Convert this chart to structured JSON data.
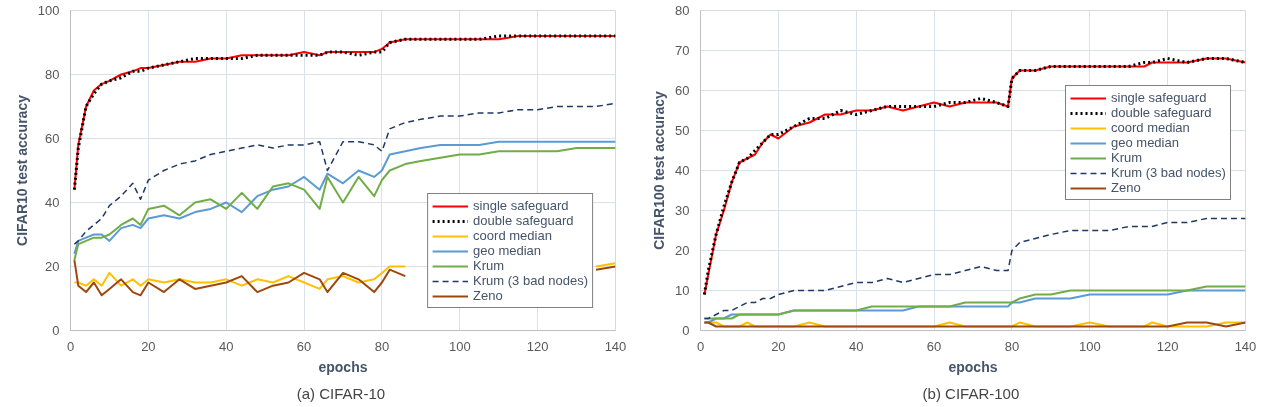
{
  "chart_data": [
    {
      "type": "line",
      "xlabel": "epochs",
      "ylabel": "CIFAR10 test accuracy",
      "annotations": [
        "(a)  CIFAR-10"
      ],
      "xlim": [
        0,
        140
      ],
      "xticks": [
        0,
        20,
        40,
        60,
        80,
        100,
        120,
        140
      ],
      "ylim": [
        0,
        100
      ],
      "yticks": [
        0,
        20,
        40,
        60,
        80,
        100
      ],
      "grid": true,
      "legend": "bottom right",
      "marker": "none",
      "x": [
        1,
        2,
        4,
        6,
        8,
        10,
        13,
        16,
        18,
        20,
        24,
        28,
        32,
        36,
        40,
        44,
        48,
        52,
        56,
        60,
        64,
        66,
        70,
        74,
        78,
        80,
        82,
        86,
        90,
        95,
        100,
        105,
        110,
        115,
        120,
        125,
        130,
        135,
        140
      ],
      "series": [
        {
          "name": "single safeguard",
          "color": "#ff0000",
          "line_style": "solid",
          "values": [
            44,
            58,
            70,
            75,
            77,
            78,
            80,
            81,
            82,
            82,
            83,
            84,
            84,
            85,
            85,
            86,
            86,
            86,
            86,
            87,
            86,
            87,
            87,
            87,
            87,
            88,
            90,
            91,
            91,
            91,
            91,
            91,
            91,
            92,
            92,
            92,
            92,
            92,
            92
          ]
        },
        {
          "name": "double safeguard",
          "color": "#000000",
          "line_style": "dotted",
          "values": [
            44,
            57,
            70,
            74,
            77,
            78,
            79,
            81,
            81,
            82,
            83,
            84,
            85,
            85,
            85,
            85,
            86,
            86,
            86,
            86,
            86,
            87,
            87,
            86,
            87,
            87,
            90,
            91,
            91,
            91,
            91,
            91,
            92,
            92,
            92,
            92,
            92,
            92,
            92
          ]
        },
        {
          "name": "coord median",
          "color": "#ffc000",
          "line_style": "solid",
          "values": [
            15,
            15,
            14,
            16,
            14,
            18,
            14,
            16,
            14,
            16,
            15,
            16,
            15,
            15,
            16,
            14,
            16,
            15,
            17,
            15,
            13,
            16,
            17,
            15,
            16,
            18,
            20,
            20,
            null,
            null,
            null,
            null,
            null,
            null,
            null,
            null,
            null,
            20,
            21
          ]
        },
        {
          "name": "geo median",
          "color": "#5b9bd5",
          "line_style": "solid",
          "values": [
            24,
            28,
            29,
            30,
            30,
            28,
            32,
            33,
            32,
            35,
            36,
            35,
            37,
            38,
            40,
            37,
            42,
            44,
            45,
            48,
            44,
            49,
            46,
            50,
            48,
            50,
            55,
            56,
            57,
            58,
            58,
            58,
            59,
            59,
            59,
            59,
            59,
            59,
            59
          ]
        },
        {
          "name": "Krum",
          "color": "#70ad47",
          "line_style": "solid",
          "values": [
            22,
            27,
            28,
            29,
            29,
            30,
            33,
            35,
            33,
            38,
            39,
            36,
            40,
            41,
            38,
            43,
            38,
            45,
            46,
            44,
            38,
            48,
            40,
            48,
            42,
            47,
            50,
            52,
            53,
            54,
            55,
            55,
            56,
            56,
            56,
            56,
            57,
            57,
            57
          ]
        },
        {
          "name": "Krum (3 bad nodes)",
          "color": "#203864",
          "line_style": "dashed",
          "values": [
            27,
            28,
            31,
            33,
            35,
            39,
            42,
            46,
            41,
            47,
            50,
            52,
            53,
            55,
            56,
            57,
            58,
            57,
            58,
            58,
            59,
            50,
            59,
            59,
            58,
            56,
            63,
            65,
            66,
            67,
            67,
            68,
            68,
            69,
            69,
            70,
            70,
            70,
            71
          ]
        },
        {
          "name": "Zeno",
          "color": "#9e480e",
          "line_style": "solid",
          "values": [
            22,
            14,
            12,
            15,
            11,
            13,
            16,
            12,
            11,
            15,
            12,
            16,
            13,
            14,
            15,
            17,
            12,
            14,
            15,
            18,
            16,
            12,
            18,
            16,
            12,
            15,
            19,
            17,
            null,
            null,
            null,
            null,
            null,
            null,
            null,
            null,
            null,
            19,
            20
          ]
        }
      ]
    },
    {
      "type": "line",
      "xlabel": "epochs",
      "ylabel": "CIFAR100 test accuracy",
      "annotations": [
        "(b)  CIFAR-100"
      ],
      "xlim": [
        0,
        140
      ],
      "xticks": [
        0,
        20,
        40,
        60,
        80,
        100,
        120,
        140
      ],
      "ylim": [
        0,
        80
      ],
      "yticks": [
        0,
        10,
        20,
        30,
        40,
        50,
        60,
        70,
        80
      ],
      "grid": true,
      "legend": "right",
      "marker": "none",
      "x": [
        1,
        2,
        4,
        6,
        8,
        10,
        12,
        14,
        16,
        18,
        20,
        24,
        28,
        32,
        36,
        40,
        44,
        48,
        52,
        56,
        60,
        64,
        68,
        72,
        76,
        79,
        80,
        82,
        86,
        90,
        95,
        100,
        105,
        110,
        114,
        116,
        120,
        125,
        130,
        135,
        140
      ],
      "series": [
        {
          "name": "single safeguard",
          "color": "#ff0000",
          "line_style": "solid",
          "values": [
            9,
            14,
            24,
            30,
            37,
            42,
            43,
            44,
            47,
            49,
            48,
            51,
            52,
            54,
            54,
            55,
            55,
            56,
            55,
            56,
            57,
            56,
            57,
            57,
            57,
            56,
            63,
            65,
            65,
            66,
            66,
            66,
            66,
            66,
            66,
            67,
            67,
            67,
            68,
            68,
            67
          ]
        },
        {
          "name": "double safeguard",
          "color": "#000000",
          "line_style": "dotted",
          "values": [
            9,
            15,
            24,
            31,
            37,
            42,
            43,
            45,
            47,
            49,
            49,
            51,
            53,
            53,
            55,
            54,
            55,
            56,
            56,
            56,
            56,
            57,
            57,
            58,
            57,
            56,
            63,
            65,
            65,
            66,
            66,
            66,
            66,
            66,
            67,
            67,
            68,
            67,
            68,
            68,
            67
          ]
        },
        {
          "name": "coord median",
          "color": "#ffc000",
          "line_style": "solid",
          "values": [
            2,
            2,
            2,
            1,
            1,
            1,
            2,
            1,
            1,
            1,
            1,
            1,
            2,
            1,
            1,
            1,
            1,
            1,
            1,
            1,
            1,
            2,
            1,
            1,
            1,
            1,
            1,
            2,
            1,
            1,
            1,
            2,
            1,
            1,
            1,
            2,
            1,
            1,
            1,
            2,
            2
          ]
        },
        {
          "name": "geo median",
          "color": "#5b9bd5",
          "line_style": "solid",
          "values": [
            2,
            2,
            3,
            3,
            4,
            4,
            4,
            4,
            4,
            4,
            4,
            5,
            5,
            5,
            5,
            5,
            5,
            5,
            5,
            6,
            6,
            6,
            6,
            6,
            6,
            6,
            7,
            7,
            8,
            8,
            8,
            9,
            9,
            9,
            9,
            9,
            9,
            10,
            10,
            10,
            10
          ]
        },
        {
          "name": "Krum",
          "color": "#70ad47",
          "line_style": "solid",
          "values": [
            3,
            3,
            3,
            3,
            3,
            4,
            4,
            4,
            4,
            4,
            4,
            5,
            5,
            5,
            5,
            5,
            6,
            6,
            6,
            6,
            6,
            6,
            7,
            7,
            7,
            7,
            7,
            8,
            9,
            9,
            10,
            10,
            10,
            10,
            10,
            10,
            10,
            10,
            11,
            11,
            11
          ]
        },
        {
          "name": "Krum (3 bad nodes)",
          "color": "#203864",
          "line_style": "dashed",
          "values": [
            3,
            3,
            4,
            5,
            5,
            6,
            7,
            7,
            8,
            8,
            9,
            10,
            10,
            10,
            11,
            12,
            12,
            13,
            12,
            13,
            14,
            14,
            15,
            16,
            15,
            15,
            20,
            22,
            23,
            24,
            25,
            25,
            25,
            26,
            26,
            26,
            27,
            27,
            28,
            28,
            28
          ]
        },
        {
          "name": "Zeno",
          "color": "#9e480e",
          "line_style": "solid",
          "values": [
            2,
            2,
            1,
            1,
            1,
            1,
            1,
            1,
            1,
            1,
            1,
            1,
            1,
            1,
            1,
            1,
            1,
            1,
            1,
            1,
            1,
            1,
            1,
            1,
            1,
            1,
            1,
            1,
            1,
            1,
            1,
            1,
            1,
            1,
            1,
            1,
            1,
            2,
            2,
            1,
            2
          ]
        }
      ]
    }
  ]
}
